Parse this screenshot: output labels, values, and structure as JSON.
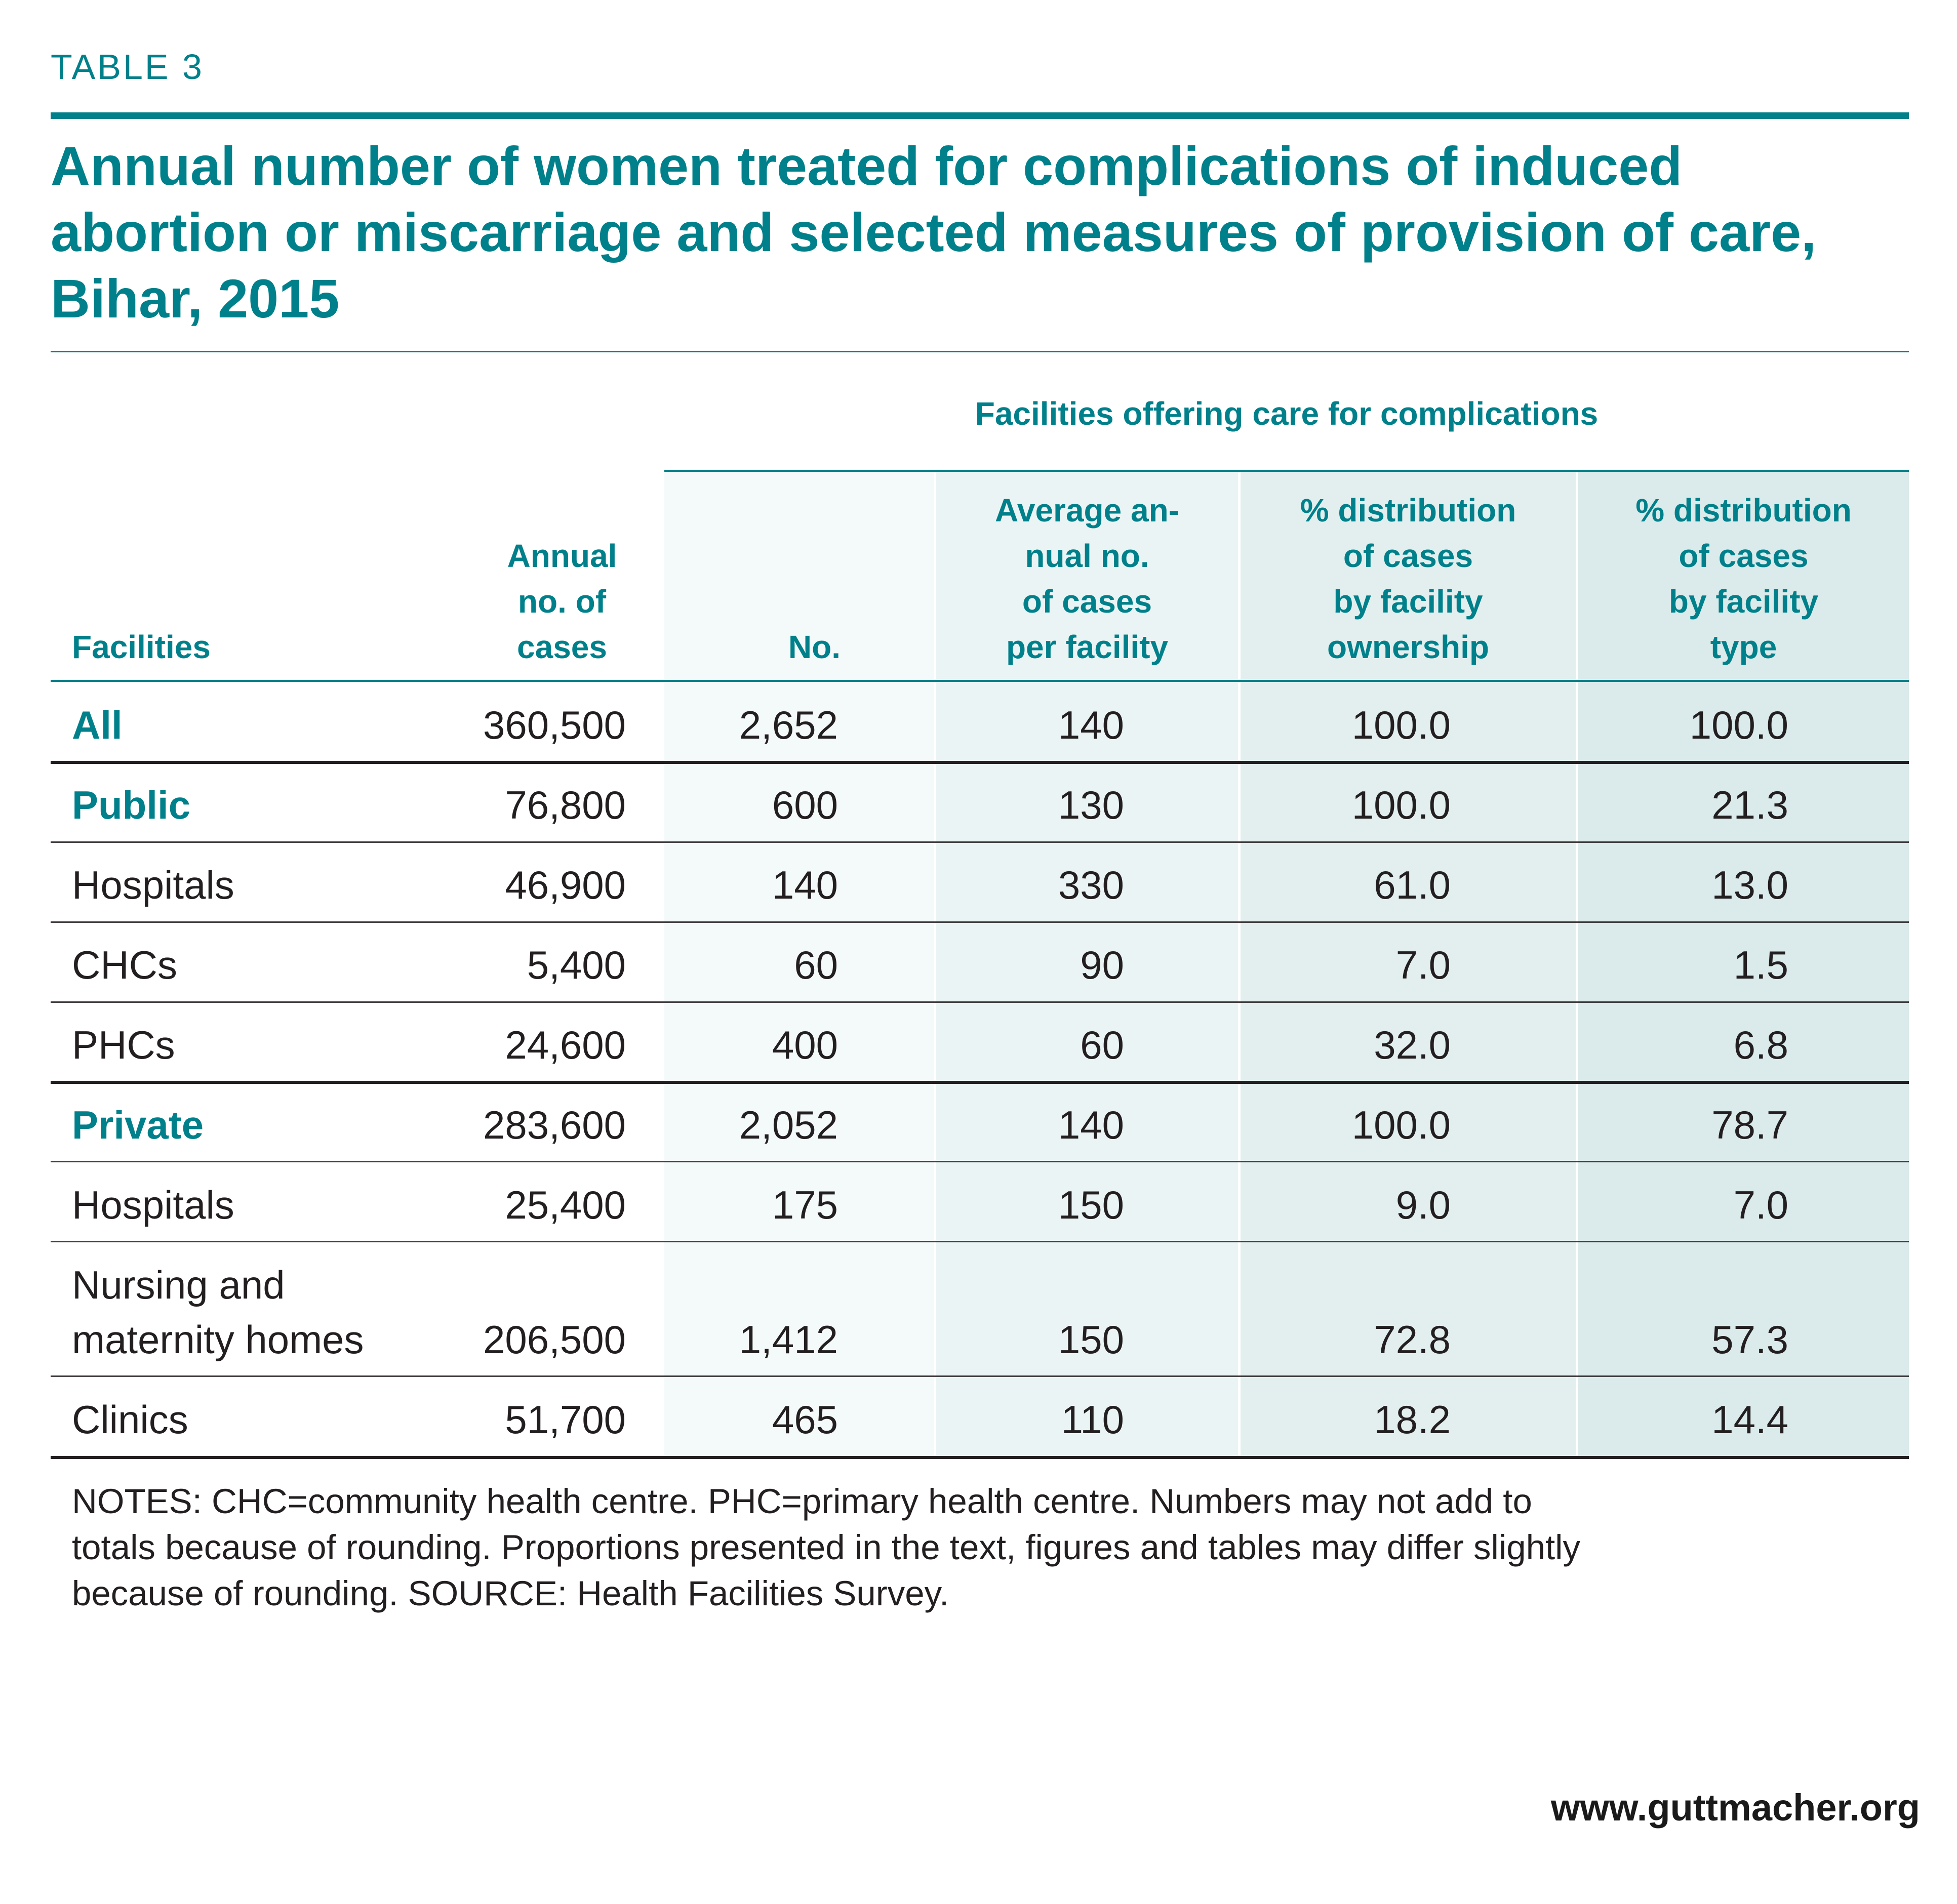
{
  "table_label": "TABLE 3",
  "title": "Annual number of women treated for complications of induced abortion or miscarriage and selected measures of provision of care, Bihar, 2015",
  "spanner": "Facilities offering care for complications",
  "headers": {
    "facilities": "Facilities",
    "annual_cases": [
      "Annual",
      "no. of",
      "cases"
    ],
    "no": "No.",
    "avg_cases": [
      "Average an-",
      "nual no.",
      "of cases",
      "per facility"
    ],
    "dist_ownership": [
      "% distribution",
      "of cases",
      "by facility",
      "ownership"
    ],
    "dist_type": [
      "% distribution",
      "of cases",
      "by facility",
      "type"
    ]
  },
  "rows": [
    {
      "label": "All",
      "group": true,
      "values": [
        "360,500",
        "2,652",
        "140",
        "100.0",
        "100.0"
      ]
    },
    {
      "label": "Public",
      "group": true,
      "values": [
        "76,800",
        "600",
        "130",
        "100.0",
        "21.3"
      ]
    },
    {
      "label": "Hospitals",
      "group": false,
      "values": [
        "46,900",
        "140",
        "330",
        "61.0",
        "13.0"
      ]
    },
    {
      "label": "CHCs",
      "group": false,
      "values": [
        "5,400",
        "60",
        "90",
        "7.0",
        "1.5"
      ]
    },
    {
      "label": "PHCs",
      "group": false,
      "values": [
        "24,600",
        "400",
        "60",
        "32.0",
        "6.8"
      ]
    },
    {
      "label": "Private",
      "group": true,
      "values": [
        "283,600",
        "2,052",
        "140",
        "100.0",
        "78.7"
      ]
    },
    {
      "label": "Hospitals",
      "group": false,
      "values": [
        "25,400",
        "175",
        "150",
        "9.0",
        "7.0"
      ]
    },
    {
      "label": [
        "Nursing and",
        "maternity homes"
      ],
      "group": false,
      "values": [
        "206,500",
        "1,412",
        "150",
        "72.8",
        "57.3"
      ]
    },
    {
      "label": "Clinics",
      "group": false,
      "values": [
        "51,700",
        "465",
        "110",
        "18.2",
        "14.4"
      ]
    }
  ],
  "notes": [
    "NOTES: CHC=community health centre. PHC=primary health centre. Numbers may not add to",
    "totals because of rounding. Proportions presented in the text, figures and tables may differ slightly",
    "because of rounding. SOURCE: Health Facilities Survey."
  ],
  "footer": "www.guttmacher.org"
}
